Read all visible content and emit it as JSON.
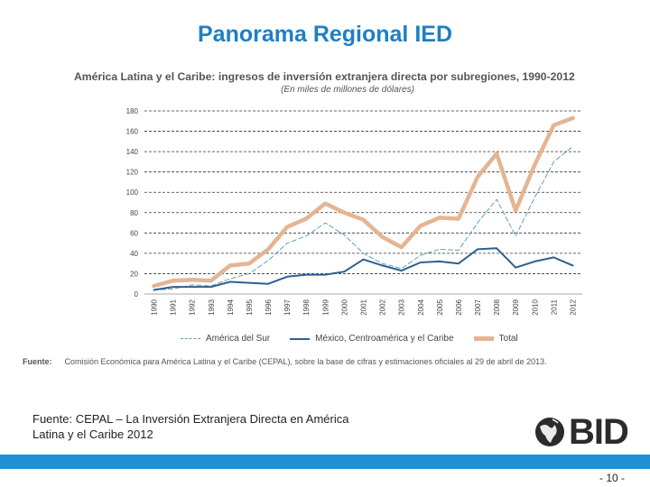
{
  "slide": {
    "title": "Panorama Regional IED",
    "footer_source": "Fuente: CEPAL – La Inversión Extranjera Directa en América Latina y el Caribe 2012",
    "logo_text": "BID",
    "page_number": "- 10 -"
  },
  "colors": {
    "title": "#1f7fc3",
    "bar": "#1f8fd6",
    "america_del_sur": "#5fa0b8",
    "mexico_ca": "#2f5f8f",
    "total": "#e3b592"
  },
  "chart_data": {
    "type": "line",
    "title": "América Latina y el Caribe: ingresos de inversión extranjera directa por subregiones, 1990-2012",
    "subtitle": "(En miles de millones de dólares)",
    "x": [
      "1990",
      "1991",
      "1992",
      "1993",
      "1994",
      "1995",
      "1996",
      "1997",
      "1998",
      "1999",
      "2000",
      "2001",
      "2002",
      "2003",
      "2004",
      "2005",
      "2006",
      "2007",
      "2008",
      "2009",
      "2010",
      "2011",
      "2012"
    ],
    "ylim": [
      0,
      180
    ],
    "yticks": [
      "0",
      "20",
      "40",
      "60",
      "80",
      "100",
      "120",
      "140",
      "160",
      "180"
    ],
    "grid": true,
    "legend_position": "bottom",
    "series": [
      {
        "name": "América del Sur",
        "style": "dashed",
        "values": [
          4,
          5,
          9,
          8,
          15,
          20,
          33,
          50,
          57,
          70,
          58,
          40,
          30,
          25,
          38,
          44,
          43,
          70,
          93,
          57,
          95,
          130,
          145
        ]
      },
      {
        "name": "México, Centroamérica y el Caribe",
        "style": "solid",
        "values": [
          4,
          7,
          7,
          7,
          12,
          11,
          10,
          17,
          19,
          19,
          22,
          34,
          28,
          23,
          31,
          32,
          30,
          44,
          45,
          26,
          32,
          36,
          28
        ]
      },
      {
        "name": "Total",
        "style": "solid-thick",
        "values": [
          8,
          13,
          14,
          13,
          28,
          30,
          44,
          66,
          74,
          89,
          80,
          73,
          56,
          46,
          67,
          75,
          74,
          115,
          138,
          82,
          127,
          166,
          173
        ]
      }
    ],
    "source_label": "Fuente:",
    "source_text": "Comisión Económica para América Latina y el Caribe (CEPAL), sobre la base de cifras y estimaciones oficiales al 29 de abril de 2013."
  }
}
